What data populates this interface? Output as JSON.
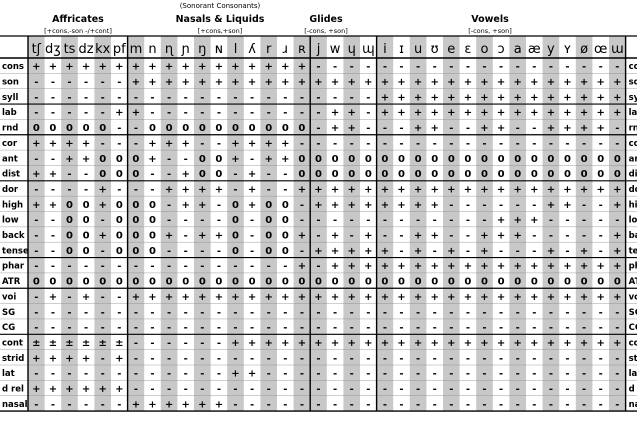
{
  "headers": {
    "super": "(Sonorant Consonants)",
    "groups": [
      {
        "title": "Affricates",
        "sub": "[+cons,-son -/+cont]"
      },
      {
        "title": "Nasals & Liquids",
        "sub": "[+cons,+son]"
      },
      {
        "title": "Glides",
        "sub": "[-cons, +son]"
      },
      {
        "title": "Vowels",
        "sub": "[-cons, +son]"
      }
    ]
  },
  "segments": [
    "tʃ",
    "dʒ",
    "ts",
    "dz",
    "kx",
    "pf",
    "m",
    "n",
    "ɳ",
    "ɲ",
    "ŋ",
    "ɴ",
    "l",
    "ʎ",
    "r",
    "ɹ",
    "ʀ",
    "j",
    "w",
    "ɥ",
    "ɰ",
    "i",
    "ɪ",
    "u",
    "ʊ",
    "e",
    "ɛ",
    "o",
    "ɔ",
    "a",
    "æ",
    "y",
    "ʏ",
    "ø",
    "œ",
    "ɯ"
  ],
  "features": [
    "cons",
    "son",
    "syll",
    "lab",
    "rnd",
    "cor",
    "ant",
    "dist",
    "dor",
    "high",
    "low",
    "back",
    "tense",
    "phar",
    "ATR",
    "voi",
    "SG",
    "CG",
    "cont",
    "strid",
    "lat",
    "d rel",
    "nasal"
  ],
  "rows": [
    [
      "+",
      "+",
      "+",
      "+",
      "+",
      "+",
      "+",
      "+",
      "+",
      "+",
      "+",
      "+",
      "+",
      "+",
      "+",
      "+",
      "+",
      "-",
      "-",
      "-",
      "-",
      "-",
      "-",
      "-",
      "-",
      "-",
      "-",
      "-",
      "-",
      "-",
      "-",
      "-",
      "-",
      "-",
      "-",
      "-"
    ],
    [
      "-",
      "-",
      "-",
      "-",
      "-",
      "-",
      "+",
      "+",
      "+",
      "+",
      "+",
      "+",
      "+",
      "+",
      "+",
      "+",
      "+",
      "+",
      "+",
      "+",
      "+",
      "+",
      "+",
      "+",
      "+",
      "+",
      "+",
      "+",
      "+",
      "+",
      "+",
      "+",
      "+",
      "+",
      "+",
      "+"
    ],
    [
      "-",
      "-",
      "-",
      "-",
      "-",
      "-",
      "-",
      "-",
      "-",
      "-",
      "-",
      "-",
      "-",
      "-",
      "-",
      "-",
      "-",
      "-",
      "-",
      "-",
      "-",
      "+",
      "+",
      "+",
      "+",
      "+",
      "+",
      "+",
      "+",
      "+",
      "+",
      "+",
      "+",
      "+",
      "+",
      "+"
    ],
    [
      "-",
      "-",
      "-",
      "-",
      "-",
      "+",
      "+",
      "-",
      "-",
      "-",
      "-",
      "-",
      "-",
      "-",
      "-",
      "-",
      "-",
      "-",
      "+",
      "+",
      "-",
      "+",
      "+",
      "+",
      "+",
      "+",
      "+",
      "+",
      "+",
      "+",
      "+",
      "+",
      "+",
      "+",
      "+",
      "+"
    ],
    [
      "0",
      "0",
      "0",
      "0",
      "0",
      "-",
      "-",
      "0",
      "0",
      "0",
      "0",
      "0",
      "0",
      "0",
      "0",
      "0",
      "0",
      "-",
      "+",
      "+",
      "-",
      "-",
      "-",
      "+",
      "+",
      "-",
      "-",
      "+",
      "+",
      "-",
      "-",
      "+",
      "+",
      "+",
      "+",
      "-"
    ],
    [
      "+",
      "+",
      "+",
      "+",
      "-",
      "-",
      "-",
      "+",
      "+",
      "+",
      "-",
      "-",
      "+",
      "+",
      "+",
      "+",
      "-",
      "-",
      "-",
      "-",
      "-",
      "-",
      "-",
      "-",
      "-",
      "-",
      "-",
      "-",
      "-",
      "-",
      "-",
      "-",
      "-",
      "-",
      "-",
      "-"
    ],
    [
      "-",
      "-",
      "+",
      "+",
      "0",
      "0",
      "0",
      "+",
      "-",
      "-",
      "0",
      "0",
      "+",
      "-",
      "+",
      "+",
      "0",
      "0",
      "0",
      "0",
      "0",
      "0",
      "0",
      "0",
      "0",
      "0",
      "0",
      "0",
      "0",
      "0",
      "0",
      "0",
      "0",
      "0",
      "0",
      "0"
    ],
    [
      "+",
      "+",
      "-",
      "-",
      "0",
      "0",
      "0",
      "-",
      "-",
      "+",
      "0",
      "0",
      "-",
      "+",
      "-",
      "-",
      "0",
      "0",
      "0",
      "0",
      "0",
      "0",
      "0",
      "0",
      "0",
      "0",
      "0",
      "0",
      "0",
      "0",
      "0",
      "0",
      "0",
      "0",
      "0",
      "0"
    ],
    [
      "-",
      "-",
      "-",
      "-",
      "+",
      "-",
      "-",
      "-",
      "+",
      "+",
      "+",
      "+",
      "-",
      "+",
      "-",
      "-",
      "+",
      "+",
      "+",
      "+",
      "+",
      "+",
      "+",
      "+",
      "+",
      "+",
      "+",
      "+",
      "+",
      "+",
      "+",
      "+",
      "+",
      "+",
      "+",
      "+"
    ],
    [
      "+",
      "+",
      "0",
      "0",
      "+",
      "0",
      "0",
      "0",
      "-",
      "+",
      "+",
      "-",
      "0",
      "+",
      "0",
      "0",
      "-",
      "+",
      "+",
      "+",
      "+",
      "+",
      "+",
      "+",
      "+",
      "-",
      "-",
      "-",
      "-",
      "-",
      "-",
      "+",
      "+",
      "-",
      "-",
      "+"
    ],
    [
      "-",
      "-",
      "0",
      "0",
      "-",
      "0",
      "0",
      "0",
      "-",
      "-",
      "-",
      "-",
      "0",
      "-",
      "0",
      "0",
      "-",
      "-",
      "-",
      "-",
      "-",
      "-",
      "-",
      "-",
      "-",
      "-",
      "-",
      "-",
      "+",
      "+",
      "+",
      "-",
      "-",
      "-",
      "-",
      "-"
    ],
    [
      "-",
      "-",
      "0",
      "0",
      "+",
      "0",
      "0",
      "0",
      "+",
      "-",
      "+",
      "+",
      "0",
      "-",
      "0",
      "0",
      "+",
      "-",
      "+",
      "-",
      "+",
      "-",
      "-",
      "+",
      "+",
      "-",
      "-",
      "+",
      "+",
      "+",
      "-",
      "-",
      "-",
      "-",
      "-",
      "+"
    ],
    [
      "-",
      "-",
      "0",
      "0",
      "-",
      "0",
      "0",
      "0",
      "-",
      "-",
      "-",
      "-",
      "0",
      "-",
      "0",
      "0",
      "-",
      "+",
      "+",
      "+",
      "+",
      "+",
      "-",
      "+",
      "-",
      "+",
      "-",
      "+",
      "-",
      "-",
      "-",
      "+",
      "-",
      "+",
      "-",
      "+"
    ],
    [
      "-",
      "-",
      "-",
      "-",
      "-",
      "-",
      "-",
      "-",
      "-",
      "-",
      "-",
      "-",
      "-",
      "-",
      "-",
      "-",
      "+",
      "-",
      "+",
      "+",
      "+",
      "+",
      "+",
      "+",
      "+",
      "+",
      "+",
      "+",
      "+",
      "+",
      "+",
      "+",
      "+",
      "+",
      "+",
      "+"
    ],
    [
      "0",
      "0",
      "0",
      "0",
      "0",
      "0",
      "0",
      "0",
      "0",
      "0",
      "0",
      "0",
      "0",
      "0",
      "0",
      "0",
      "0",
      "0",
      "0",
      "0",
      "0",
      "0",
      "0",
      "0",
      "0",
      "0",
      "0",
      "0",
      "0",
      "0",
      "0",
      "0",
      "0",
      "0",
      "0",
      "0"
    ],
    [
      "-",
      "+",
      "-",
      "+",
      "-",
      "-",
      "+",
      "+",
      "+",
      "+",
      "+",
      "+",
      "+",
      "+",
      "+",
      "+",
      "+",
      "+",
      "+",
      "+",
      "+",
      "+",
      "+",
      "+",
      "+",
      "+",
      "+",
      "+",
      "+",
      "+",
      "+",
      "+",
      "+",
      "+",
      "+",
      "+"
    ],
    [
      "-",
      "-",
      "-",
      "-",
      "-",
      "-",
      "-",
      "-",
      "-",
      "-",
      "-",
      "-",
      "-",
      "-",
      "-",
      "-",
      "-",
      "-",
      "-",
      "-",
      "-",
      "-",
      "-",
      "-",
      "-",
      "-",
      "-",
      "-",
      "-",
      "-",
      "-",
      "-",
      "-",
      "-",
      "-",
      "-"
    ],
    [
      "-",
      "-",
      "-",
      "-",
      "-",
      "-",
      "-",
      "-",
      "-",
      "-",
      "-",
      "-",
      "-",
      "-",
      "-",
      "-",
      "-",
      "-",
      "-",
      "-",
      "-",
      "-",
      "-",
      "-",
      "-",
      "-",
      "-",
      "-",
      "-",
      "-",
      "-",
      "-",
      "-",
      "-",
      "-",
      "-"
    ],
    [
      "±",
      "±",
      "±",
      "±",
      "±",
      "±",
      "-",
      "-",
      "-",
      "-",
      "-",
      "-",
      "+",
      "+",
      "+",
      "+",
      "+",
      "+",
      "+",
      "+",
      "+",
      "+",
      "+",
      "+",
      "+",
      "+",
      "+",
      "+",
      "+",
      "+",
      "+",
      "+",
      "+",
      "+",
      "+",
      "+"
    ],
    [
      "+",
      "+",
      "+",
      "+",
      "-",
      "+",
      "-",
      "-",
      "-",
      "-",
      "-",
      "-",
      "-",
      "-",
      "-",
      "-",
      "-",
      "-",
      "-",
      "-",
      "-",
      "-",
      "-",
      "-",
      "-",
      "-",
      "-",
      "-",
      "-",
      "-",
      "-",
      "-",
      "-",
      "-",
      "-",
      "-"
    ],
    [
      "-",
      "-",
      "-",
      "-",
      "-",
      "-",
      "-",
      "-",
      "-",
      "-",
      "-",
      "-",
      "+",
      "+",
      "-",
      "-",
      "-",
      "-",
      "-",
      "-",
      "-",
      "-",
      "-",
      "-",
      "-",
      "-",
      "-",
      "-",
      "-",
      "-",
      "-",
      "-",
      "-",
      "-",
      "-",
      "-"
    ],
    [
      "+",
      "+",
      "+",
      "+",
      "+",
      "+",
      "-",
      "-",
      "-",
      "-",
      "-",
      "-",
      "-",
      "-",
      "-",
      "-",
      "-",
      "-",
      "-",
      "-",
      "-",
      "-",
      "-",
      "-",
      "-",
      "-",
      "-",
      "-",
      "-",
      "-",
      "-",
      "-",
      "-",
      "-",
      "-",
      "-"
    ],
    [
      "-",
      "-",
      "-",
      "-",
      "-",
      "-",
      "+",
      "+",
      "+",
      "+",
      "+",
      "+",
      "-",
      "-",
      "-",
      "-",
      "-",
      "-",
      "-",
      "-",
      "-",
      "-",
      "-",
      "-",
      "-",
      "-",
      "-",
      "-",
      "-",
      "-",
      "-",
      "-",
      "-",
      "-",
      "-",
      "-"
    ]
  ],
  "colors": {
    "shade": "#c8c8c8",
    "line": "#000000",
    "text": "#000000"
  }
}
